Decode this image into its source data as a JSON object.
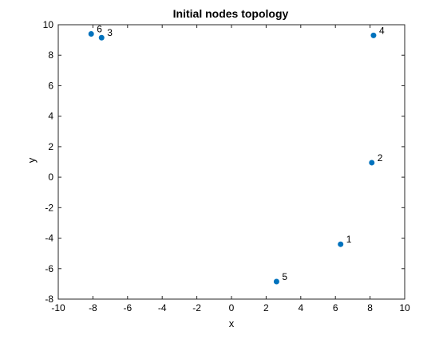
{
  "chart_data": {
    "type": "scatter",
    "title": "Initial nodes topology",
    "xlabel": "x",
    "ylabel": "y",
    "xlim": [
      -10,
      10
    ],
    "ylim": [
      -8,
      10
    ],
    "xticks": [
      -10,
      -8,
      -6,
      -4,
      -2,
      0,
      2,
      4,
      6,
      8,
      10
    ],
    "yticks": [
      -8,
      -6,
      -4,
      -2,
      0,
      2,
      4,
      6,
      8,
      10
    ],
    "grid": false,
    "marker_color": "#0072BD",
    "points": [
      {
        "label": "1",
        "x": 6.3,
        "y": -4.4
      },
      {
        "label": "2",
        "x": 8.1,
        "y": 0.95
      },
      {
        "label": "3",
        "x": -7.5,
        "y": 9.15
      },
      {
        "label": "4",
        "x": 8.2,
        "y": 9.3
      },
      {
        "label": "5",
        "x": 2.6,
        "y": -6.85
      },
      {
        "label": "6",
        "x": -8.1,
        "y": 9.4
      }
    ]
  }
}
